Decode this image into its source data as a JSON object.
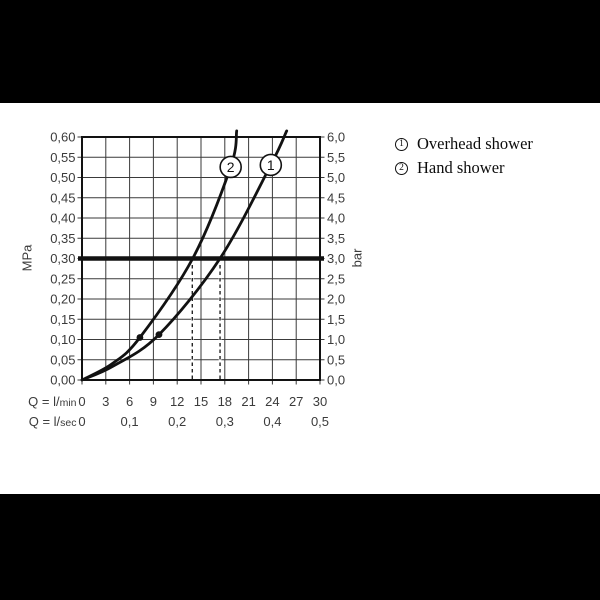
{
  "colors": {
    "background": "#ffffff",
    "band": "#000000",
    "ink": "#121212",
    "grid": "#3a3a3a",
    "text": "#3b3b3b"
  },
  "legend": {
    "items": [
      {
        "marker": "1",
        "label": "Overhead shower"
      },
      {
        "marker": "2",
        "label": "Hand shower"
      }
    ]
  },
  "chart_data": {
    "type": "line",
    "title": "",
    "grid": true,
    "x_axis": {
      "row1_label": "Q = l/min",
      "row2_label": "Q = l/sec",
      "range_lmin": [
        0,
        30
      ],
      "ticks_lmin": [
        0,
        3,
        6,
        9,
        12,
        15,
        18,
        21,
        24,
        27,
        30
      ],
      "ticks_lsec": [
        {
          "q": 0,
          "label": "0"
        },
        {
          "q": 6,
          "label": "0,1"
        },
        {
          "q": 12,
          "label": "0,2"
        },
        {
          "q": 18,
          "label": "0,3"
        },
        {
          "q": 24,
          "label": "0,4"
        },
        {
          "q": 30,
          "label": "0,5"
        }
      ]
    },
    "y_axis_left": {
      "label": "MPa",
      "range_mpa": [
        0,
        0.6
      ],
      "ticks": [
        "0,60",
        "0,55",
        "0,50",
        "0,45",
        "0,40",
        "0,35",
        "0,30",
        "0,25",
        "0,20",
        "0,15",
        "0,10",
        "0,05",
        "0,00"
      ]
    },
    "y_axis_right": {
      "label": "bar",
      "range_bar": [
        0,
        6
      ],
      "ticks": [
        "6,0",
        "5,5",
        "5,0",
        "4,5",
        "4,0",
        "3,5",
        "3,0",
        "2,5",
        "2,0",
        "1,5",
        "1,0",
        "0,5",
        "0,0"
      ]
    },
    "reference_line": {
      "value_mpa": 0.3,
      "value_bar": 3.0
    },
    "dashed_lines_lmin": [
      13.9,
      17.4
    ],
    "series": [
      {
        "marker": "1",
        "name": "Overhead shower",
        "points_lmin_mpa": [
          [
            0,
            0
          ],
          [
            4,
            0.035
          ],
          [
            9.7,
            0.112
          ],
          [
            17.4,
            0.3
          ],
          [
            23.8,
            0.531
          ],
          [
            25.8,
            0.615
          ]
        ],
        "dot_lmin_mpa": [
          9.7,
          0.112
        ],
        "label_at_lmin_mpa": [
          23.8,
          0.531
        ]
      },
      {
        "marker": "2",
        "name": "Hand shower",
        "points_lmin_mpa": [
          [
            0,
            0
          ],
          [
            3.8,
            0.04
          ],
          [
            7.3,
            0.105
          ],
          [
            13.95,
            0.3
          ],
          [
            18.74,
            0.526
          ],
          [
            19.5,
            0.615
          ]
        ],
        "dot_lmin_mpa": [
          7.3,
          0.105
        ],
        "label_at_lmin_mpa": [
          18.74,
          0.526
        ]
      }
    ]
  }
}
